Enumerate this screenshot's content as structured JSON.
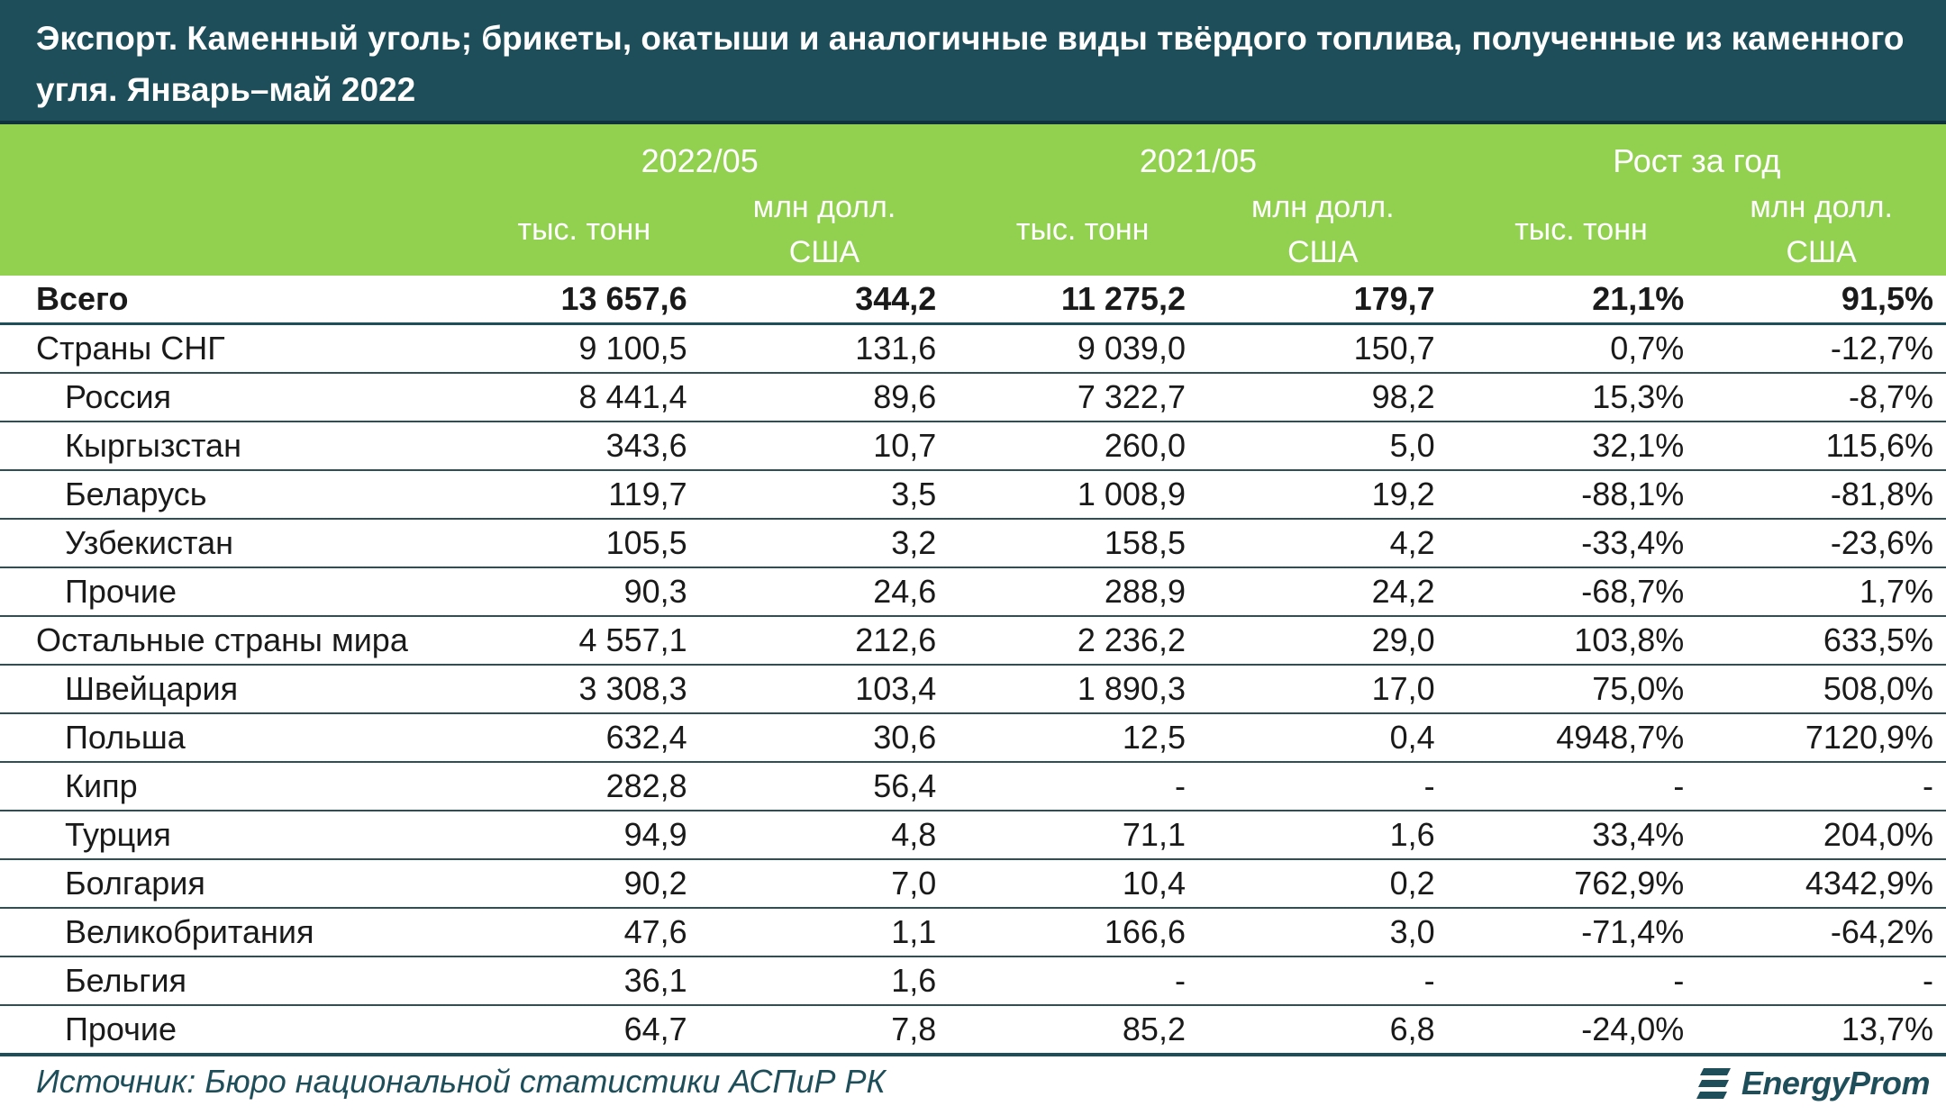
{
  "title": "Экспорт. Каменный уголь; брикеты, окатыши и аналогичные виды твёрдого топлива, полученные из каменного угля. Январь–май 2022",
  "header": {
    "periods": [
      "2022/05",
      "2021/05",
      "Рост за год"
    ],
    "unit_ton": "тыс. тонн",
    "unit_usd_line1": "млн долл.",
    "unit_usd_line2": "США"
  },
  "rows": [
    {
      "name": "Всего",
      "v": [
        "13 657,6",
        "344,2",
        "11 275,2",
        "179,7",
        "21,1%",
        "91,5%"
      ]
    },
    {
      "name": "Страны СНГ",
      "v": [
        "9 100,5",
        "131,6",
        "9 039,0",
        "150,7",
        "0,7%",
        "-12,7%"
      ]
    },
    {
      "name": "Россия",
      "v": [
        "8 441,4",
        "89,6",
        "7 322,7",
        "98,2",
        "15,3%",
        "-8,7%"
      ]
    },
    {
      "name": "Кыргызстан",
      "v": [
        "343,6",
        "10,7",
        "260,0",
        "5,0",
        "32,1%",
        "115,6%"
      ]
    },
    {
      "name": "Беларусь",
      "v": [
        "119,7",
        "3,5",
        "1 008,9",
        "19,2",
        "-88,1%",
        "-81,8%"
      ]
    },
    {
      "name": "Узбекистан",
      "v": [
        "105,5",
        "3,2",
        "158,5",
        "4,2",
        "-33,4%",
        "-23,6%"
      ]
    },
    {
      "name": "Прочие",
      "v": [
        "90,3",
        "24,6",
        "288,9",
        "24,2",
        "-68,7%",
        "1,7%"
      ]
    },
    {
      "name": "Остальные страны мира",
      "v": [
        "4 557,1",
        "212,6",
        "2 236,2",
        "29,0",
        "103,8%",
        "633,5%"
      ]
    },
    {
      "name": "Швейцария",
      "v": [
        "3 308,3",
        "103,4",
        "1 890,3",
        "17,0",
        "75,0%",
        "508,0%"
      ]
    },
    {
      "name": "Польша",
      "v": [
        "632,4",
        "30,6",
        "12,5",
        "0,4",
        "4948,7%",
        "7120,9%"
      ]
    },
    {
      "name": "Кипр",
      "v": [
        "282,8",
        "56,4",
        "-",
        "-",
        "-",
        "-"
      ]
    },
    {
      "name": "Турция",
      "v": [
        "94,9",
        "4,8",
        "71,1",
        "1,6",
        "33,4%",
        "204,0%"
      ]
    },
    {
      "name": "Болгария",
      "v": [
        "90,2",
        "7,0",
        "10,4",
        "0,2",
        "762,9%",
        "4342,9%"
      ]
    },
    {
      "name": "Великобритания",
      "v": [
        "47,6",
        "1,1",
        "166,6",
        "3,0",
        "-71,4%",
        "-64,2%"
      ]
    },
    {
      "name": "Бельгия",
      "v": [
        "36,1",
        "1,6",
        "-",
        "-",
        "-",
        "-"
      ]
    },
    {
      "name": "Прочие",
      "v": [
        "64,7",
        "7,8",
        "85,2",
        "6,8",
        "-24,0%",
        "13,7%"
      ]
    }
  ],
  "footer": {
    "source": "Источник: Бюро национальной статистики АСПиР РК",
    "logo_text": "EnergyProm",
    "logo_icon": "energyprom-logo-icon"
  },
  "colors": {
    "title_bg": "#1d4e5a",
    "header_bg": "#92d050",
    "accent_text": "#1d4e5a"
  }
}
